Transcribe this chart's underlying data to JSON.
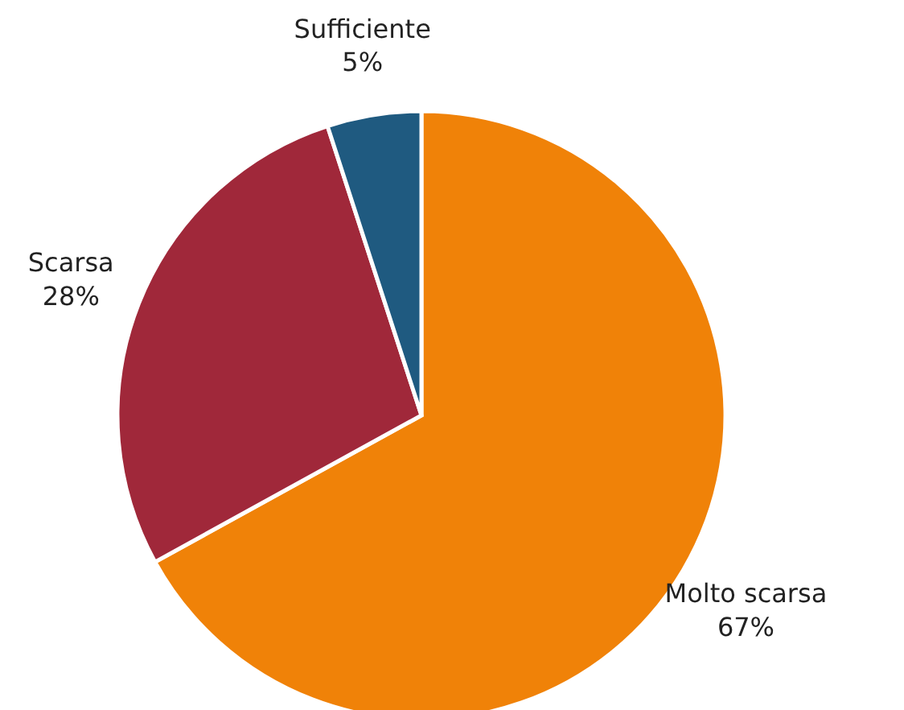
{
  "chart_data": {
    "type": "pie",
    "categories": [
      "Molto scarsa",
      "Scarsa",
      "Sufficiente"
    ],
    "values": [
      67,
      28,
      5
    ],
    "colors": [
      "#f08208",
      "#a0283a",
      "#1f5a80"
    ],
    "value_labels": [
      "67%",
      "28%",
      "5%"
    ]
  }
}
